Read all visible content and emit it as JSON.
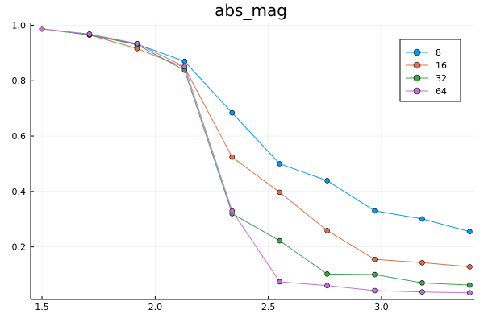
{
  "chart_data": {
    "type": "line",
    "title": "abs_mag",
    "xlabel": "",
    "ylabel": "",
    "xlim": [
      1.45,
      3.41
    ],
    "ylim": [
      0.01,
      1.01
    ],
    "xticks": [
      1.5,
      2.0,
      2.5,
      3.0
    ],
    "xtick_labels": [
      "1.5",
      "2.0",
      "2.5",
      "3.0"
    ],
    "yticks": [
      0.2,
      0.4,
      0.6,
      0.8,
      1.0
    ],
    "ytick_labels": [
      "0.2",
      "0.4",
      "0.6",
      "0.8",
      "1.0"
    ],
    "grid": true,
    "legend_position": "top-right",
    "x": [
      1.5,
      1.71,
      1.92,
      2.13,
      2.34,
      2.55,
      2.76,
      2.97,
      3.18,
      3.39
    ],
    "series": [
      {
        "name": "8",
        "color": "#009af9",
        "values": [
          0.987,
          0.968,
          0.932,
          0.87,
          0.684,
          0.5,
          0.439,
          0.33,
          0.301,
          0.255
        ]
      },
      {
        "name": "16",
        "color": "#e26f46",
        "values": [
          0.987,
          0.965,
          0.916,
          0.848,
          0.524,
          0.397,
          0.259,
          0.155,
          0.143,
          0.128
        ]
      },
      {
        "name": "32",
        "color": "#3da44d",
        "values": [
          0.987,
          0.965,
          0.93,
          0.838,
          0.32,
          0.222,
          0.102,
          0.1,
          0.07,
          0.062
        ]
      },
      {
        "name": "64",
        "color": "#c271d2",
        "values": [
          0.987,
          0.968,
          0.934,
          0.851,
          0.33,
          0.074,
          0.06,
          0.042,
          0.037,
          0.034
        ]
      }
    ]
  }
}
